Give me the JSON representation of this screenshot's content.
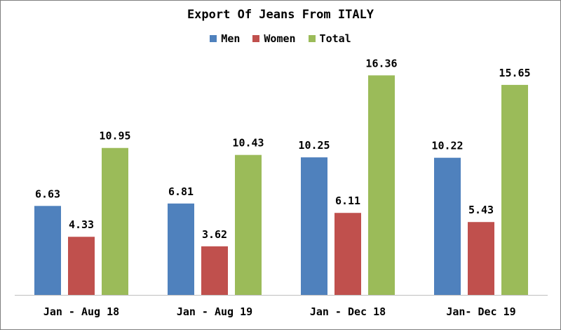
{
  "chart_data": {
    "type": "bar",
    "title": "Export Of Jeans From ITALY",
    "categories": [
      "Jan - Aug 18",
      "Jan - Aug 19",
      "Jan - Dec 18",
      "Jan- Dec 19"
    ],
    "series": [
      {
        "name": "Men",
        "values": [
          6.63,
          6.81,
          10.25,
          10.22
        ],
        "color": "#4f81bd"
      },
      {
        "name": "Women",
        "values": [
          4.33,
          3.62,
          6.11,
          5.43
        ],
        "color": "#c0504d"
      },
      {
        "name": "Total",
        "values": [
          10.95,
          10.43,
          16.36,
          15.65
        ],
        "color": "#9bbb59"
      }
    ],
    "ylim": [
      0,
      18
    ],
    "grid": false,
    "legend_position": "top"
  }
}
